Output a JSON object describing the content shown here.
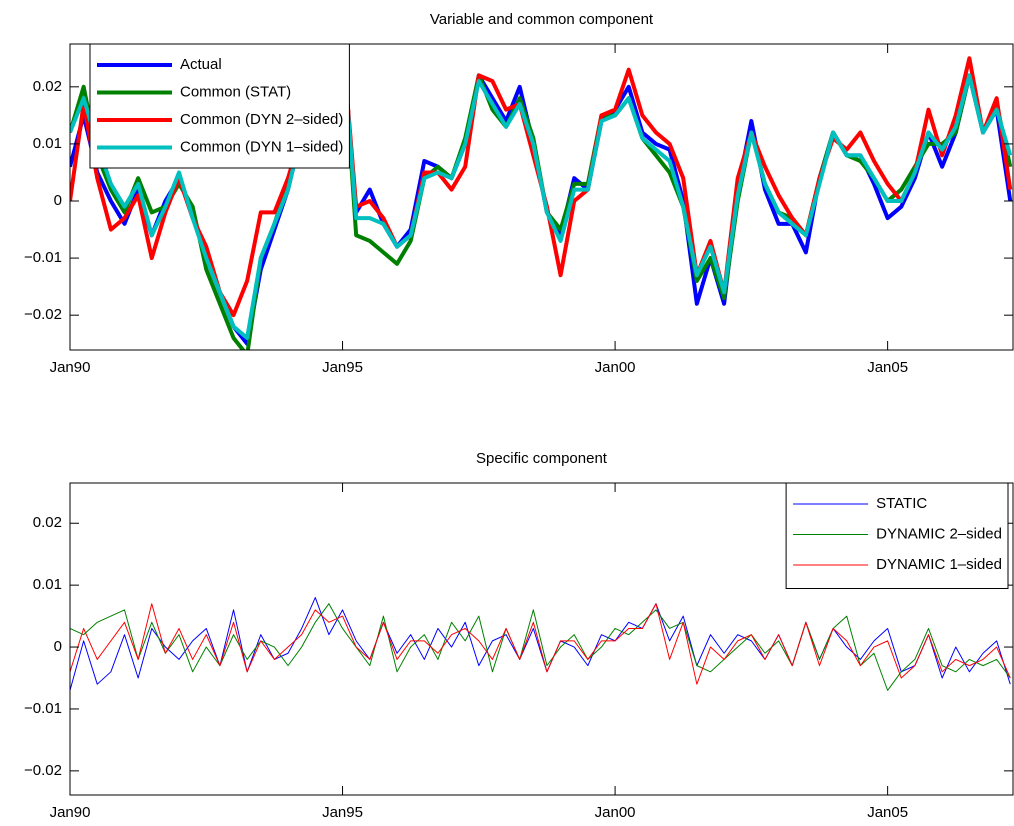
{
  "chart_data": [
    {
      "type": "line",
      "title": "Variable and common component",
      "x": [
        1990,
        1990.25,
        1990.5,
        1990.75,
        1991,
        1991.25,
        1991.5,
        1991.75,
        1992,
        1992.25,
        1992.5,
        1992.75,
        1993,
        1993.25,
        1993.5,
        1993.75,
        1994,
        1994.25,
        1994.5,
        1994.75,
        1995,
        1995.25,
        1995.5,
        1995.75,
        1996,
        1996.25,
        1996.5,
        1996.75,
        1997,
        1997.25,
        1997.5,
        1997.75,
        1998,
        1998.25,
        1998.5,
        1998.75,
        1999,
        1999.25,
        1999.5,
        1999.75,
        2000,
        2000.25,
        2000.5,
        2000.75,
        2001,
        2001.25,
        2001.5,
        2001.75,
        2002,
        2002.25,
        2002.5,
        2002.75,
        2003,
        2003.25,
        2003.5,
        2003.75,
        2004,
        2004.25,
        2004.5,
        2004.75,
        2005,
        2005.25,
        2005.5,
        2005.75,
        2006,
        2006.25,
        2006.5,
        2006.75,
        2007,
        2007.25
      ],
      "xlim": [
        1990,
        2007.3
      ],
      "xticks": [
        {
          "value": 1990,
          "label": "Jan90"
        },
        {
          "value": 1995,
          "label": "Jan95"
        },
        {
          "value": 2000,
          "label": "Jan00"
        },
        {
          "value": 2005,
          "label": "Jan05"
        }
      ],
      "ylim": [
        -0.0261,
        0.0275
      ],
      "yticks": [
        {
          "value": -0.02,
          "label": "−0.02"
        },
        {
          "value": -0.01,
          "label": "−0.01"
        },
        0,
        0.01,
        0.02
      ],
      "line_width": 4,
      "legend": "northwest",
      "series": [
        {
          "name": "Actual",
          "color": "#0000ff",
          "values": [
            0.006,
            0.015,
            0.005,
            0.0,
            -0.004,
            0.002,
            -0.006,
            0.0,
            0.004,
            -0.002,
            -0.01,
            -0.016,
            -0.022,
            -0.025,
            -0.012,
            -0.005,
            0.002,
            0.012,
            0.02,
            0.026,
            0.028,
            -0.002,
            0.002,
            -0.004,
            -0.008,
            -0.005,
            0.007,
            0.006,
            0.004,
            0.01,
            0.022,
            0.018,
            0.014,
            0.02,
            0.01,
            -0.002,
            -0.006,
            0.004,
            0.002,
            0.014,
            0.016,
            0.02,
            0.012,
            0.01,
            0.009,
            0.0,
            -0.018,
            -0.01,
            -0.018,
            0.002,
            0.014,
            0.002,
            -0.004,
            -0.004,
            -0.009,
            0.004,
            0.012,
            0.008,
            0.008,
            0.003,
            -0.003,
            -0.001,
            0.004,
            0.012,
            0.006,
            0.012,
            0.022,
            0.012,
            0.016,
            0.0
          ]
        },
        {
          "name": "Common (STAT)",
          "color": "#008000",
          "values": [
            0.012,
            0.02,
            0.008,
            0.002,
            -0.002,
            0.004,
            -0.002,
            -0.001,
            0.003,
            -0.001,
            -0.012,
            -0.018,
            -0.024,
            -0.027,
            -0.01,
            -0.004,
            0.003,
            0.013,
            0.021,
            0.027,
            0.029,
            -0.006,
            -0.007,
            -0.009,
            -0.011,
            -0.007,
            0.004,
            0.006,
            0.004,
            0.011,
            0.022,
            0.016,
            0.013,
            0.018,
            0.011,
            -0.002,
            -0.005,
            0.003,
            0.003,
            0.015,
            0.015,
            0.018,
            0.011,
            0.008,
            0.005,
            -0.001,
            -0.014,
            -0.01,
            -0.017,
            0.0,
            0.012,
            0.003,
            -0.002,
            -0.003,
            -0.006,
            0.004,
            0.012,
            0.008,
            0.007,
            0.004,
            0.0,
            0.002,
            0.006,
            0.01,
            0.01,
            0.012,
            0.022,
            0.012,
            0.017,
            0.006
          ]
        },
        {
          "name": "Common (DYN 2–sided)",
          "color": "#ff0000",
          "values": [
            0.0,
            0.017,
            0.004,
            -0.005,
            -0.003,
            0.001,
            -0.01,
            -0.002,
            0.004,
            -0.003,
            -0.008,
            -0.016,
            -0.02,
            -0.014,
            -0.002,
            -0.002,
            0.004,
            0.012,
            0.021,
            0.026,
            0.028,
            -0.001,
            0.0,
            -0.003,
            -0.008,
            -0.006,
            0.005,
            0.005,
            0.002,
            0.006,
            0.022,
            0.021,
            0.016,
            0.017,
            0.008,
            -0.001,
            -0.013,
            0.0,
            0.002,
            0.015,
            0.016,
            0.023,
            0.015,
            0.012,
            0.01,
            0.004,
            -0.013,
            -0.007,
            -0.016,
            0.004,
            0.012,
            0.006,
            0.001,
            -0.003,
            -0.006,
            0.004,
            0.011,
            0.009,
            0.012,
            0.007,
            0.003,
            0.0,
            0.005,
            0.016,
            0.008,
            0.015,
            0.025,
            0.012,
            0.018,
            0.002
          ]
        },
        {
          "name": "Common (DYN 1–sided)",
          "color": "#00bfbf",
          "values": [
            0.012,
            0.018,
            0.01,
            0.003,
            -0.001,
            0.003,
            -0.006,
            -0.001,
            0.005,
            -0.003,
            -0.01,
            -0.016,
            -0.022,
            -0.024,
            -0.01,
            -0.004,
            0.002,
            0.012,
            0.02,
            0.026,
            0.028,
            -0.003,
            -0.003,
            -0.004,
            -0.008,
            -0.006,
            0.004,
            0.005,
            0.004,
            0.01,
            0.021,
            0.017,
            0.013,
            0.017,
            0.01,
            -0.002,
            -0.007,
            0.002,
            0.002,
            0.014,
            0.015,
            0.018,
            0.011,
            0.009,
            0.007,
            -0.001,
            -0.013,
            -0.008,
            -0.016,
            0.001,
            0.012,
            0.003,
            -0.002,
            -0.004,
            -0.006,
            0.003,
            0.012,
            0.008,
            0.008,
            0.004,
            0.0,
            0.0,
            0.005,
            0.012,
            0.009,
            0.013,
            0.022,
            0.012,
            0.016,
            0.008
          ]
        }
      ]
    },
    {
      "type": "line",
      "title": "Specific component",
      "x": [
        1990,
        1990.25,
        1990.5,
        1990.75,
        1991,
        1991.25,
        1991.5,
        1991.75,
        1992,
        1992.25,
        1992.5,
        1992.75,
        1993,
        1993.25,
        1993.5,
        1993.75,
        1994,
        1994.25,
        1994.5,
        1994.75,
        1995,
        1995.25,
        1995.5,
        1995.75,
        1996,
        1996.25,
        1996.5,
        1996.75,
        1997,
        1997.25,
        1997.5,
        1997.75,
        1998,
        1998.25,
        1998.5,
        1998.75,
        1999,
        1999.25,
        1999.5,
        1999.75,
        2000,
        2000.25,
        2000.5,
        2000.75,
        2001,
        2001.25,
        2001.5,
        2001.75,
        2002,
        2002.25,
        2002.5,
        2002.75,
        2003,
        2003.25,
        2003.5,
        2003.75,
        2004,
        2004.25,
        2004.5,
        2004.75,
        2005,
        2005.25,
        2005.5,
        2005.75,
        2006,
        2006.25,
        2006.5,
        2006.75,
        2007,
        2007.25
      ],
      "xlim": [
        1990,
        2007.3
      ],
      "xticks": [
        {
          "value": 1990,
          "label": "Jan90"
        },
        {
          "value": 1995,
          "label": "Jan95"
        },
        {
          "value": 2000,
          "label": "Jan00"
        },
        {
          "value": 2005,
          "label": "Jan05"
        }
      ],
      "ylim": [
        -0.0239,
        0.0265
      ],
      "yticks": [
        {
          "value": -0.02,
          "label": "−0.02"
        },
        {
          "value": -0.01,
          "label": "−0.01"
        },
        0,
        0.01,
        0.02
      ],
      "line_width": 1,
      "legend": "northeast",
      "series": [
        {
          "name": "STATIC",
          "color": "#0000ff",
          "values": [
            -0.007,
            0.001,
            -0.006,
            -0.004,
            0.002,
            -0.005,
            0.003,
            0.0,
            -0.002,
            0.001,
            0.003,
            -0.003,
            0.006,
            -0.004,
            0.002,
            -0.002,
            -0.001,
            0.003,
            0.008,
            0.002,
            0.006,
            0.001,
            -0.002,
            0.004,
            -0.001,
            0.002,
            -0.002,
            0.003,
            0.0,
            0.004,
            -0.003,
            0.001,
            0.002,
            -0.002,
            0.003,
            -0.004,
            0.001,
            0.0,
            -0.003,
            0.002,
            0.001,
            0.004,
            0.003,
            0.007,
            0.001,
            0.005,
            -0.003,
            0.002,
            -0.001,
            0.002,
            0.001,
            -0.002,
            0.002,
            -0.003,
            0.004,
            -0.002,
            0.003,
            0.0,
            -0.002,
            0.001,
            0.003,
            -0.004,
            -0.003,
            0.002,
            -0.005,
            0.0,
            -0.004,
            -0.001,
            0.001,
            -0.006
          ]
        },
        {
          "name": "DYNAMIC 2–sided",
          "color": "#008000",
          "values": [
            0.003,
            0.002,
            0.004,
            0.005,
            0.006,
            -0.002,
            0.004,
            -0.001,
            0.002,
            -0.004,
            0.0,
            -0.003,
            0.002,
            -0.002,
            0.001,
            0.0,
            -0.003,
            0.0,
            0.004,
            0.007,
            0.003,
            0.0,
            -0.003,
            0.005,
            -0.004,
            0.0,
            0.002,
            -0.002,
            0.004,
            0.001,
            0.005,
            -0.004,
            0.003,
            -0.002,
            0.006,
            -0.003,
            0.0,
            0.002,
            -0.002,
            0.0,
            0.003,
            0.002,
            0.004,
            0.006,
            0.003,
            0.004,
            -0.003,
            -0.004,
            -0.002,
            0.0,
            0.002,
            -0.001,
            0.001,
            -0.003,
            0.004,
            -0.002,
            0.003,
            0.005,
            -0.003,
            -0.001,
            -0.007,
            -0.004,
            -0.002,
            0.003,
            -0.003,
            -0.004,
            -0.002,
            -0.003,
            -0.002,
            -0.005
          ]
        },
        {
          "name": "DYNAMIC 1–sided",
          "color": "#ff0000",
          "values": [
            -0.004,
            0.003,
            -0.002,
            0.001,
            0.004,
            -0.002,
            0.007,
            -0.001,
            0.003,
            -0.002,
            0.002,
            -0.003,
            0.004,
            -0.004,
            0.001,
            -0.002,
            0.0,
            0.002,
            0.006,
            0.004,
            0.005,
            0.0,
            -0.002,
            0.004,
            -0.002,
            0.001,
            0.001,
            -0.001,
            0.002,
            0.003,
            0.001,
            -0.002,
            0.003,
            -0.002,
            0.004,
            -0.004,
            0.001,
            0.001,
            -0.002,
            0.001,
            0.001,
            0.003,
            0.003,
            0.007,
            -0.002,
            0.004,
            -0.006,
            0.0,
            -0.002,
            0.001,
            0.002,
            -0.002,
            0.002,
            -0.003,
            0.004,
            -0.003,
            0.003,
            0.001,
            -0.003,
            0.0,
            0.001,
            -0.005,
            -0.003,
            0.002,
            -0.004,
            -0.002,
            -0.003,
            -0.002,
            0.0,
            -0.005
          ]
        }
      ]
    }
  ]
}
